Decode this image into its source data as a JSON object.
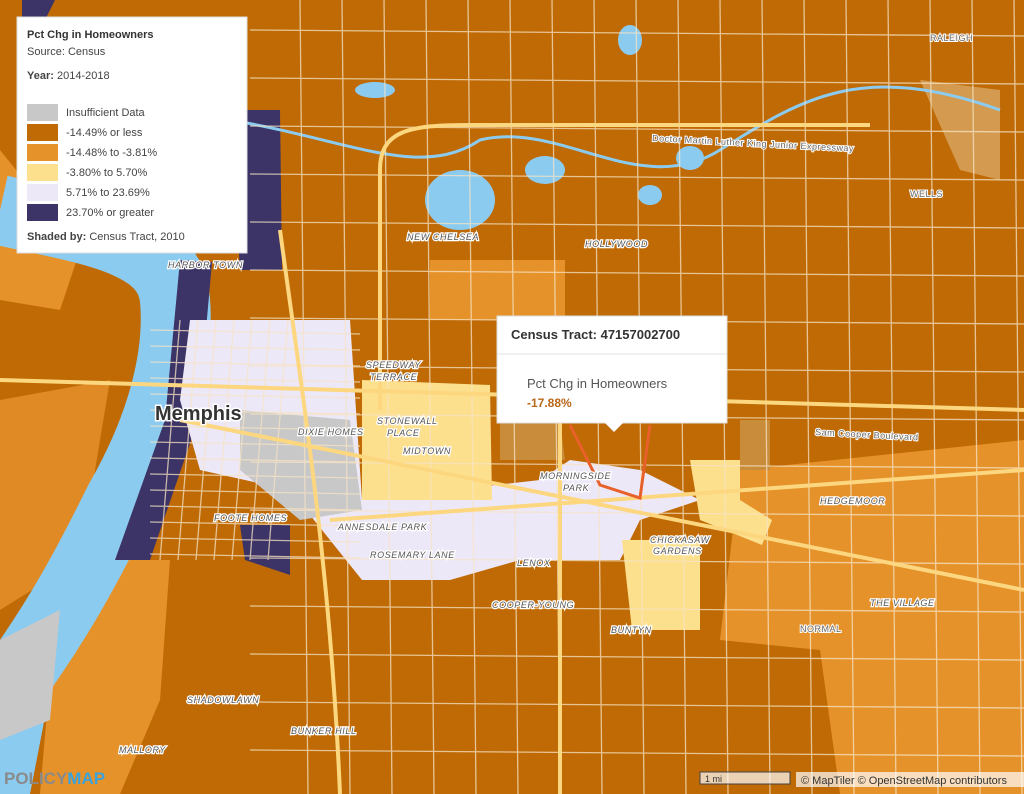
{
  "legend": {
    "title": "Pct Chg in Homeowners",
    "source": "Source: Census",
    "year_label": "Year:",
    "year": "2014-2018",
    "items": [
      {
        "label": "Insufficient Data",
        "color": "#c8c8c8"
      },
      {
        "label": "-14.49% or less",
        "color": "#bf6a05"
      },
      {
        "label": "-14.48% to -3.81%",
        "color": "#e6922a"
      },
      {
        "label": "-3.80% to 5.70%",
        "color": "#fde08e"
      },
      {
        "label": "5.71% to 23.69%",
        "color": "#ede8f7"
      },
      {
        "label": "23.70% or greater",
        "color": "#3c3466"
      }
    ],
    "shaded_by_label": "Shaded by:",
    "shaded_by": "Census Tract, 2010"
  },
  "tooltip": {
    "title": "Census Tract: 47157002700",
    "metric": "Pct Chg in Homeowners",
    "value": "-17.88%"
  },
  "city_label": "Memphis",
  "place_labels": [
    "HARBOR TOWN",
    "NEW CHELSEA",
    "HOLLYWOOD",
    "SPEEDWAY",
    "TERRACE",
    "STONEWALL",
    "PLACE",
    "DIXIE HOMES",
    "MIDTOWN",
    "MORNINGSIDE",
    "PARK",
    "FOOTE HOMES",
    "ANNESDALE PARK",
    "ROSEMARY LANE",
    "LENOX",
    "CHICKASAW",
    "GARDENS",
    "HEDGEMOOR",
    "COOPER-YOUNG",
    "BUNTYN",
    "THE VILLAGE",
    "SHADOWLAWN",
    "BUNKER HILL",
    "MALLORY"
  ],
  "street_labels": [
    "RALEIGH",
    "WELLS",
    "Doctor Martin Luther King Junior Expressway",
    "Sam Cooper Boulevard",
    "NORMAL"
  ],
  "scale": "1 mi",
  "attribution": "© MapTiler © OpenStreetMap contributors",
  "logo": {
    "left": "POLICY",
    "right": "MAP"
  }
}
